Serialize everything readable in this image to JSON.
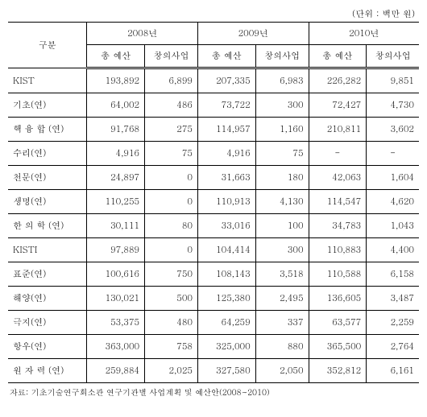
{
  "unitLabel": "(단위 : 백만 원)",
  "header": {
    "category": "구분",
    "years": [
      "2008년",
      "2009년",
      "2010년"
    ],
    "sub": [
      "총 예산",
      "창의사업"
    ]
  },
  "rows": [
    {
      "label": "KIST",
      "v": [
        "193,892",
        "6,899",
        "207,335",
        "6,983",
        "226,282",
        "9,851"
      ]
    },
    {
      "label": "기초(연)",
      "v": [
        "64,002",
        "486",
        "73,722",
        "300",
        "72,427",
        "4,730"
      ]
    },
    {
      "label": "핵 융 합 (연)",
      "v": [
        "91,768",
        "275",
        "114,957",
        "1,160",
        "210,811",
        "3,602"
      ]
    },
    {
      "label": "수리(연)",
      "v": [
        "4,916",
        "75",
        "4,916",
        "75",
        "-",
        "-"
      ]
    },
    {
      "label": "천문(연)",
      "v": [
        "24,897",
        "0",
        "31,663",
        "180",
        "42,063",
        "1,604"
      ]
    },
    {
      "label": "생명(연)",
      "v": [
        "110,255",
        "0",
        "110,913",
        "4,130",
        "114,547",
        "4,620"
      ]
    },
    {
      "label": "한 의 학 (연)",
      "v": [
        "30,111",
        "80",
        "33,016",
        "100",
        "34,783",
        "1,043"
      ]
    },
    {
      "label": "KISTI",
      "v": [
        "97,889",
        "0",
        "104,414",
        "300",
        "110,883",
        "4,400"
      ]
    },
    {
      "label": "표준(연)",
      "v": [
        "100,616",
        "750",
        "108,143",
        "3,518",
        "110,588",
        "6,158"
      ]
    },
    {
      "label": "해양(연)",
      "v": [
        "130,021",
        "500",
        "125,380",
        "2,495",
        "136,605",
        "3,487"
      ]
    },
    {
      "label": "극지(연)",
      "v": [
        "53,375",
        "480",
        "64,259",
        "337",
        "63,577",
        "2,259"
      ]
    },
    {
      "label": "항우(연)",
      "v": [
        "363,000",
        "758",
        "325,000",
        "880",
        "365,500",
        "2,764"
      ]
    },
    {
      "label": "원 자 력 (연)",
      "v": [
        "259,884",
        "2,025",
        "327,580",
        "2,050",
        "352,812",
        "6,161"
      ]
    }
  ],
  "footnote": "자료: 기초기술연구회소관 연구기관별 사업계획 및 예산안(2008~2010)",
  "dashRows": [
    3
  ],
  "styling": {
    "fontSize": 11,
    "borderColor": "#000000",
    "background": "#ffffff",
    "footnoteFontSize": 10
  }
}
